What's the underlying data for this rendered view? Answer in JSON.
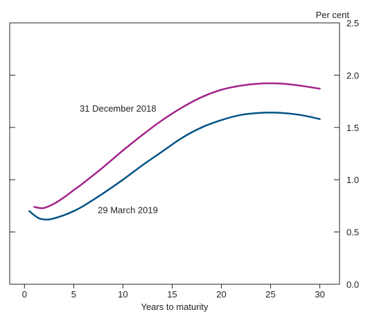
{
  "chart_data": {
    "type": "line",
    "title": "",
    "xlabel": "Years to maturity",
    "ylabel": "Per cent",
    "xlim": [
      -1.5,
      32
    ],
    "ylim": [
      0,
      2.5
    ],
    "x_ticks": [
      0,
      5,
      10,
      15,
      20,
      25,
      30
    ],
    "y_ticks": [
      0.0,
      0.5,
      1.0,
      1.5,
      2.0,
      2.5
    ],
    "y_tick_labels": [
      "0.0",
      "0.5",
      "1.0",
      "1.5",
      "2.0",
      "2.5"
    ],
    "grid": false,
    "legend": "none",
    "series": [
      {
        "name": "31 December 2018",
        "color": "#a2238a",
        "x": [
          1,
          1.5,
          2,
          3,
          4,
          5,
          6,
          8,
          10,
          12,
          14,
          16,
          18,
          20,
          22,
          24,
          26,
          28,
          30
        ],
        "y": [
          0.74,
          0.73,
          0.73,
          0.77,
          0.83,
          0.9,
          0.97,
          1.12,
          1.28,
          1.43,
          1.57,
          1.69,
          1.79,
          1.86,
          1.9,
          1.92,
          1.92,
          1.9,
          1.87
        ]
      },
      {
        "name": "29 March 2019",
        "color": "#005385",
        "x": [
          0.5,
          1,
          1.5,
          2,
          2.5,
          3,
          4,
          5,
          6,
          8,
          10,
          12,
          14,
          16,
          18,
          20,
          22,
          24,
          26,
          28,
          30
        ],
        "y": [
          0.7,
          0.66,
          0.63,
          0.62,
          0.62,
          0.63,
          0.66,
          0.7,
          0.75,
          0.87,
          1.0,
          1.14,
          1.27,
          1.4,
          1.5,
          1.57,
          1.62,
          1.64,
          1.64,
          1.62,
          1.58
        ]
      }
    ],
    "annotations": [
      {
        "text": "31 December 2018",
        "x": 9.5,
        "y": 1.65
      },
      {
        "text": "29 March 2019",
        "x": 10.5,
        "y": 0.68
      }
    ]
  }
}
